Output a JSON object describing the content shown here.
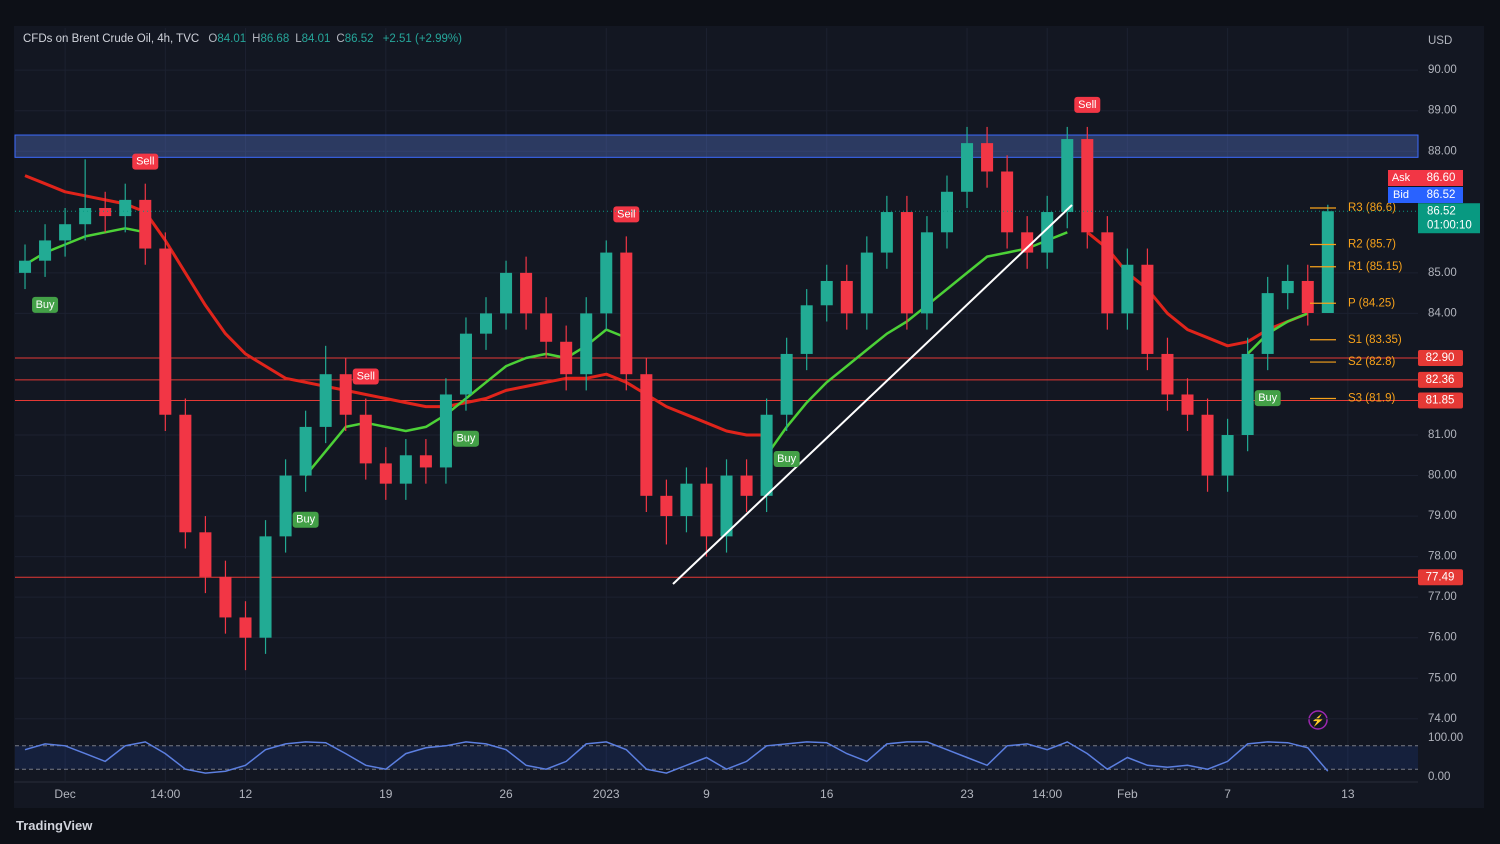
{
  "chart_data": [
    {
      "type": "candlestick",
      "title": "CFDs on Brent Crude Oil, 4h, TVC",
      "ohlc": [
        {
          "label": "O",
          "value": 84.01
        },
        {
          "label": "H",
          "value": 86.68
        },
        {
          "label": "L",
          "value": 84.01
        },
        {
          "label": "C",
          "value": 86.52
        }
      ],
      "change": "+2.51 (+2.99%)",
      "currency": "USD",
      "up_color": "#22ab94",
      "down_color": "#f23645",
      "categories": [
        null,
        null,
        "Dec",
        null,
        null,
        null,
        null,
        "14:00",
        null,
        null,
        null,
        "12",
        null,
        null,
        null,
        null,
        null,
        null,
        "19",
        null,
        null,
        null,
        null,
        null,
        "26",
        null,
        null,
        null,
        null,
        "2023",
        null,
        null,
        null,
        null,
        "9",
        null,
        null,
        null,
        null,
        null,
        "16",
        null,
        null,
        null,
        null,
        null,
        null,
        "23",
        null,
        null,
        null,
        "14:00",
        null,
        null,
        null,
        "Feb",
        null,
        null,
        null,
        null,
        "7",
        null,
        null,
        null,
        null,
        null,
        "13",
        null,
        null,
        null
      ],
      "open": [
        85.0,
        85.3,
        85.8,
        86.2,
        86.6,
        86.4,
        86.8,
        85.6,
        81.5,
        78.6,
        77.5,
        76.5,
        76.0,
        78.5,
        80.0,
        81.2,
        82.5,
        81.5,
        80.3,
        79.8,
        80.5,
        80.2,
        82.0,
        83.5,
        84.0,
        85.0,
        84.0,
        83.3,
        82.5,
        84.0,
        85.5,
        82.5,
        79.5,
        79.0,
        79.8,
        78.5,
        80.0,
        79.5,
        81.5,
        83.0,
        84.2,
        84.8,
        84.0,
        85.5,
        86.5,
        84.0,
        86.0,
        87.0,
        88.2,
        87.5,
        86.0,
        85.5,
        86.5,
        88.3,
        86.0,
        84.0,
        85.2,
        83.0,
        82.0,
        81.5,
        80.0,
        81.0,
        83.0,
        84.5,
        84.8,
        84.01,
        null,
        null,
        null,
        null
      ],
      "high": [
        85.7,
        86.2,
        86.6,
        87.8,
        87.0,
        87.2,
        87.2,
        86.0,
        81.9,
        79.0,
        77.9,
        76.9,
        78.9,
        80.4,
        81.6,
        83.2,
        82.9,
        81.9,
        80.7,
        80.9,
        80.9,
        82.4,
        83.9,
        84.4,
        85.3,
        85.4,
        84.4,
        83.7,
        84.4,
        85.8,
        85.9,
        82.9,
        79.9,
        80.2,
        80.2,
        80.4,
        80.4,
        81.9,
        83.4,
        84.6,
        85.2,
        85.2,
        85.9,
        86.9,
        86.9,
        86.4,
        87.4,
        88.6,
        88.6,
        87.9,
        86.4,
        86.9,
        88.6,
        88.6,
        86.4,
        85.6,
        85.6,
        83.4,
        82.4,
        81.9,
        81.4,
        83.4,
        84.9,
        85.2,
        85.2,
        86.68,
        null,
        null,
        null,
        null
      ],
      "low": [
        84.6,
        84.9,
        85.4,
        85.8,
        86.0,
        86.0,
        85.2,
        81.1,
        78.2,
        77.1,
        76.1,
        75.2,
        75.6,
        78.1,
        79.6,
        80.8,
        81.1,
        79.9,
        79.4,
        79.4,
        79.8,
        79.8,
        81.6,
        83.1,
        83.6,
        83.6,
        82.9,
        82.1,
        82.1,
        83.6,
        82.1,
        79.1,
        78.3,
        78.6,
        78.0,
        78.1,
        79.1,
        79.1,
        81.1,
        82.6,
        83.8,
        83.6,
        83.6,
        85.1,
        83.6,
        83.6,
        85.6,
        86.6,
        87.1,
        85.6,
        85.1,
        85.1,
        86.1,
        85.6,
        83.6,
        83.6,
        82.6,
        81.6,
        81.1,
        79.6,
        79.6,
        80.6,
        82.6,
        84.1,
        83.7,
        84.01,
        null,
        null,
        null,
        null
      ],
      "close": [
        85.3,
        85.8,
        86.2,
        86.6,
        86.4,
        86.8,
        85.6,
        81.5,
        78.6,
        77.5,
        76.5,
        76.0,
        78.5,
        80.0,
        81.2,
        82.5,
        81.5,
        80.3,
        79.8,
        80.5,
        80.2,
        82.0,
        83.5,
        84.0,
        85.0,
        84.0,
        83.3,
        82.5,
        84.0,
        85.5,
        82.5,
        79.5,
        79.0,
        79.8,
        78.5,
        80.0,
        79.5,
        81.5,
        83.0,
        84.2,
        84.8,
        84.0,
        85.5,
        86.5,
        84.0,
        86.0,
        87.0,
        88.2,
        87.5,
        86.0,
        85.5,
        86.5,
        88.3,
        86.0,
        84.0,
        85.2,
        83.0,
        82.0,
        81.5,
        80.0,
        81.0,
        83.0,
        84.5,
        84.8,
        84.01,
        86.52,
        null,
        null,
        null,
        null
      ],
      "signals": [
        null,
        {
          "label": "Buy",
          "color": "#43a047"
        },
        null,
        null,
        null,
        null,
        {
          "label": "Sell",
          "color": "#f23645"
        },
        null,
        null,
        null,
        null,
        null,
        null,
        null,
        {
          "label": "Buy",
          "color": "#43a047"
        },
        null,
        null,
        {
          "label": "Sell",
          "color": "#f23645"
        },
        null,
        null,
        null,
        null,
        {
          "label": "Buy",
          "color": "#43a047"
        },
        null,
        null,
        null,
        null,
        null,
        null,
        null,
        {
          "label": "Sell",
          "color": "#f23645"
        },
        null,
        null,
        null,
        null,
        null,
        null,
        null,
        {
          "label": "Buy",
          "color": "#43a047"
        },
        null,
        null,
        null,
        null,
        null,
        null,
        null,
        null,
        null,
        null,
        null,
        null,
        null,
        null,
        {
          "label": "Sell",
          "color": "#f23645"
        },
        null,
        null,
        null,
        null,
        null,
        null,
        null,
        null,
        {
          "label": "Buy",
          "color": "#43a047"
        },
        null,
        null,
        null,
        null,
        null,
        null,
        null
      ],
      "overlays": [
        {
          "color": "#e0241b",
          "values": [
            87.4,
            87.2,
            87.0,
            86.9,
            86.8,
            86.7,
            86.5,
            85.8,
            85.0,
            84.2,
            83.5,
            83.0,
            82.7,
            82.4,
            82.3,
            82.2,
            82.1,
            82.0,
            81.9,
            81.8,
            81.7,
            81.7,
            81.8,
            81.9,
            82.1,
            82.2,
            82.3,
            82.4,
            82.4,
            82.5,
            82.3,
            82.0,
            81.7,
            81.5,
            81.3,
            81.1,
            81.0,
            81.0,
            null,
            null,
            null,
            null,
            null,
            null,
            null,
            null,
            null,
            null,
            null,
            null,
            null,
            null,
            null,
            86.0,
            85.6,
            85.0,
            84.6,
            84.0,
            83.6,
            83.4,
            83.2,
            83.3,
            83.6,
            83.8,
            84.0,
            null,
            null,
            null,
            null,
            null
          ]
        },
        {
          "color": "#4cd137",
          "values": [
            85.2,
            85.5,
            85.7,
            85.9,
            86.0,
            86.1,
            86.0,
            null,
            null,
            null,
            null,
            null,
            null,
            null,
            80.0,
            80.6,
            81.2,
            81.3,
            81.2,
            81.1,
            81.2,
            81.5,
            81.9,
            82.3,
            82.7,
            82.9,
            83.0,
            82.9,
            83.2,
            83.6,
            83.4,
            null,
            null,
            null,
            null,
            null,
            null,
            80.5,
            81.2,
            81.8,
            82.3,
            82.7,
            83.1,
            83.5,
            83.8,
            84.2,
            84.6,
            85.0,
            85.4,
            85.5,
            85.6,
            85.8,
            86.0,
            null,
            null,
            null,
            null,
            null,
            null,
            null,
            null,
            83.0,
            83.5,
            83.8,
            84.0,
            null,
            null,
            null,
            null,
            null
          ]
        }
      ],
      "zone": {
        "from": 87.85,
        "to": 88.4,
        "color": "#5b7bd6"
      },
      "pivots": [
        {
          "label": "R3 (86.6)",
          "value": 86.6
        },
        {
          "label": "R2 (85.7)",
          "value": 85.7
        },
        {
          "label": "R1 (85.15)",
          "value": 85.15
        },
        {
          "label": "P (84.25)",
          "value": 84.25
        },
        {
          "label": "S1 (83.35)",
          "value": 83.35
        },
        {
          "label": "S2 (82.8)",
          "value": 82.8
        },
        {
          "label": "S3 (81.9)",
          "value": 81.9
        }
      ],
      "levels": [
        {
          "value": 82.9,
          "label": "82.90"
        },
        {
          "value": 82.36,
          "label": "82.36"
        },
        {
          "value": 81.85,
          "label": "81.85"
        },
        {
          "value": 77.49,
          "label": "77.49"
        }
      ],
      "quotes": [
        {
          "name": "Ask",
          "value": 86.6,
          "label": "86.60",
          "color": "#f23645"
        },
        {
          "name": "Bid",
          "value": 86.52,
          "label": "86.52",
          "color": "#2962ff"
        }
      ],
      "last": {
        "value": 86.52,
        "label": "86.52",
        "countdown": "01:00:10",
        "color": "#089981"
      },
      "ylim": [
        73.6,
        91.04
      ],
      "yticks": [
        {
          "value": 74,
          "label": "74.00"
        },
        {
          "value": 75,
          "label": "75.00"
        },
        {
          "value": 76,
          "label": "76.00"
        },
        {
          "value": 77,
          "label": "77.00"
        },
        {
          "value": 78,
          "label": "78.00"
        },
        {
          "value": 79,
          "label": "79.00"
        },
        {
          "value": 80,
          "label": "80.00"
        },
        {
          "value": 81,
          "label": "81.00"
        },
        {
          "value": 84,
          "label": "84.00"
        },
        {
          "value": 85,
          "label": "85.00"
        },
        {
          "value": 88,
          "label": "88.00"
        },
        {
          "value": 89,
          "label": "89.00"
        },
        {
          "value": 90,
          "label": "90.00"
        }
      ],
      "grid": true
    },
    {
      "type": "line",
      "color": "#5c7fe0",
      "values": [
        70,
        85,
        80,
        60,
        40,
        80,
        90,
        60,
        20,
        10,
        15,
        30,
        70,
        85,
        90,
        88,
        60,
        30,
        20,
        60,
        75,
        80,
        90,
        85,
        70,
        30,
        20,
        40,
        85,
        90,
        70,
        20,
        10,
        30,
        50,
        20,
        40,
        80,
        85,
        90,
        88,
        60,
        40,
        85,
        90,
        90,
        70,
        50,
        30,
        80,
        85,
        70,
        90,
        60,
        20,
        50,
        30,
        25,
        30,
        20,
        40,
        85,
        90,
        88,
        75,
        15,
        null,
        null,
        null,
        null
      ],
      "band": [
        20,
        80
      ],
      "ylim": [
        -12.8,
        107.7
      ],
      "yticks": [
        {
          "value": 0,
          "label": "0.00"
        },
        {
          "value": 100,
          "label": "100.00"
        }
      ]
    }
  ],
  "footer": {
    "brand": "TradingView"
  }
}
